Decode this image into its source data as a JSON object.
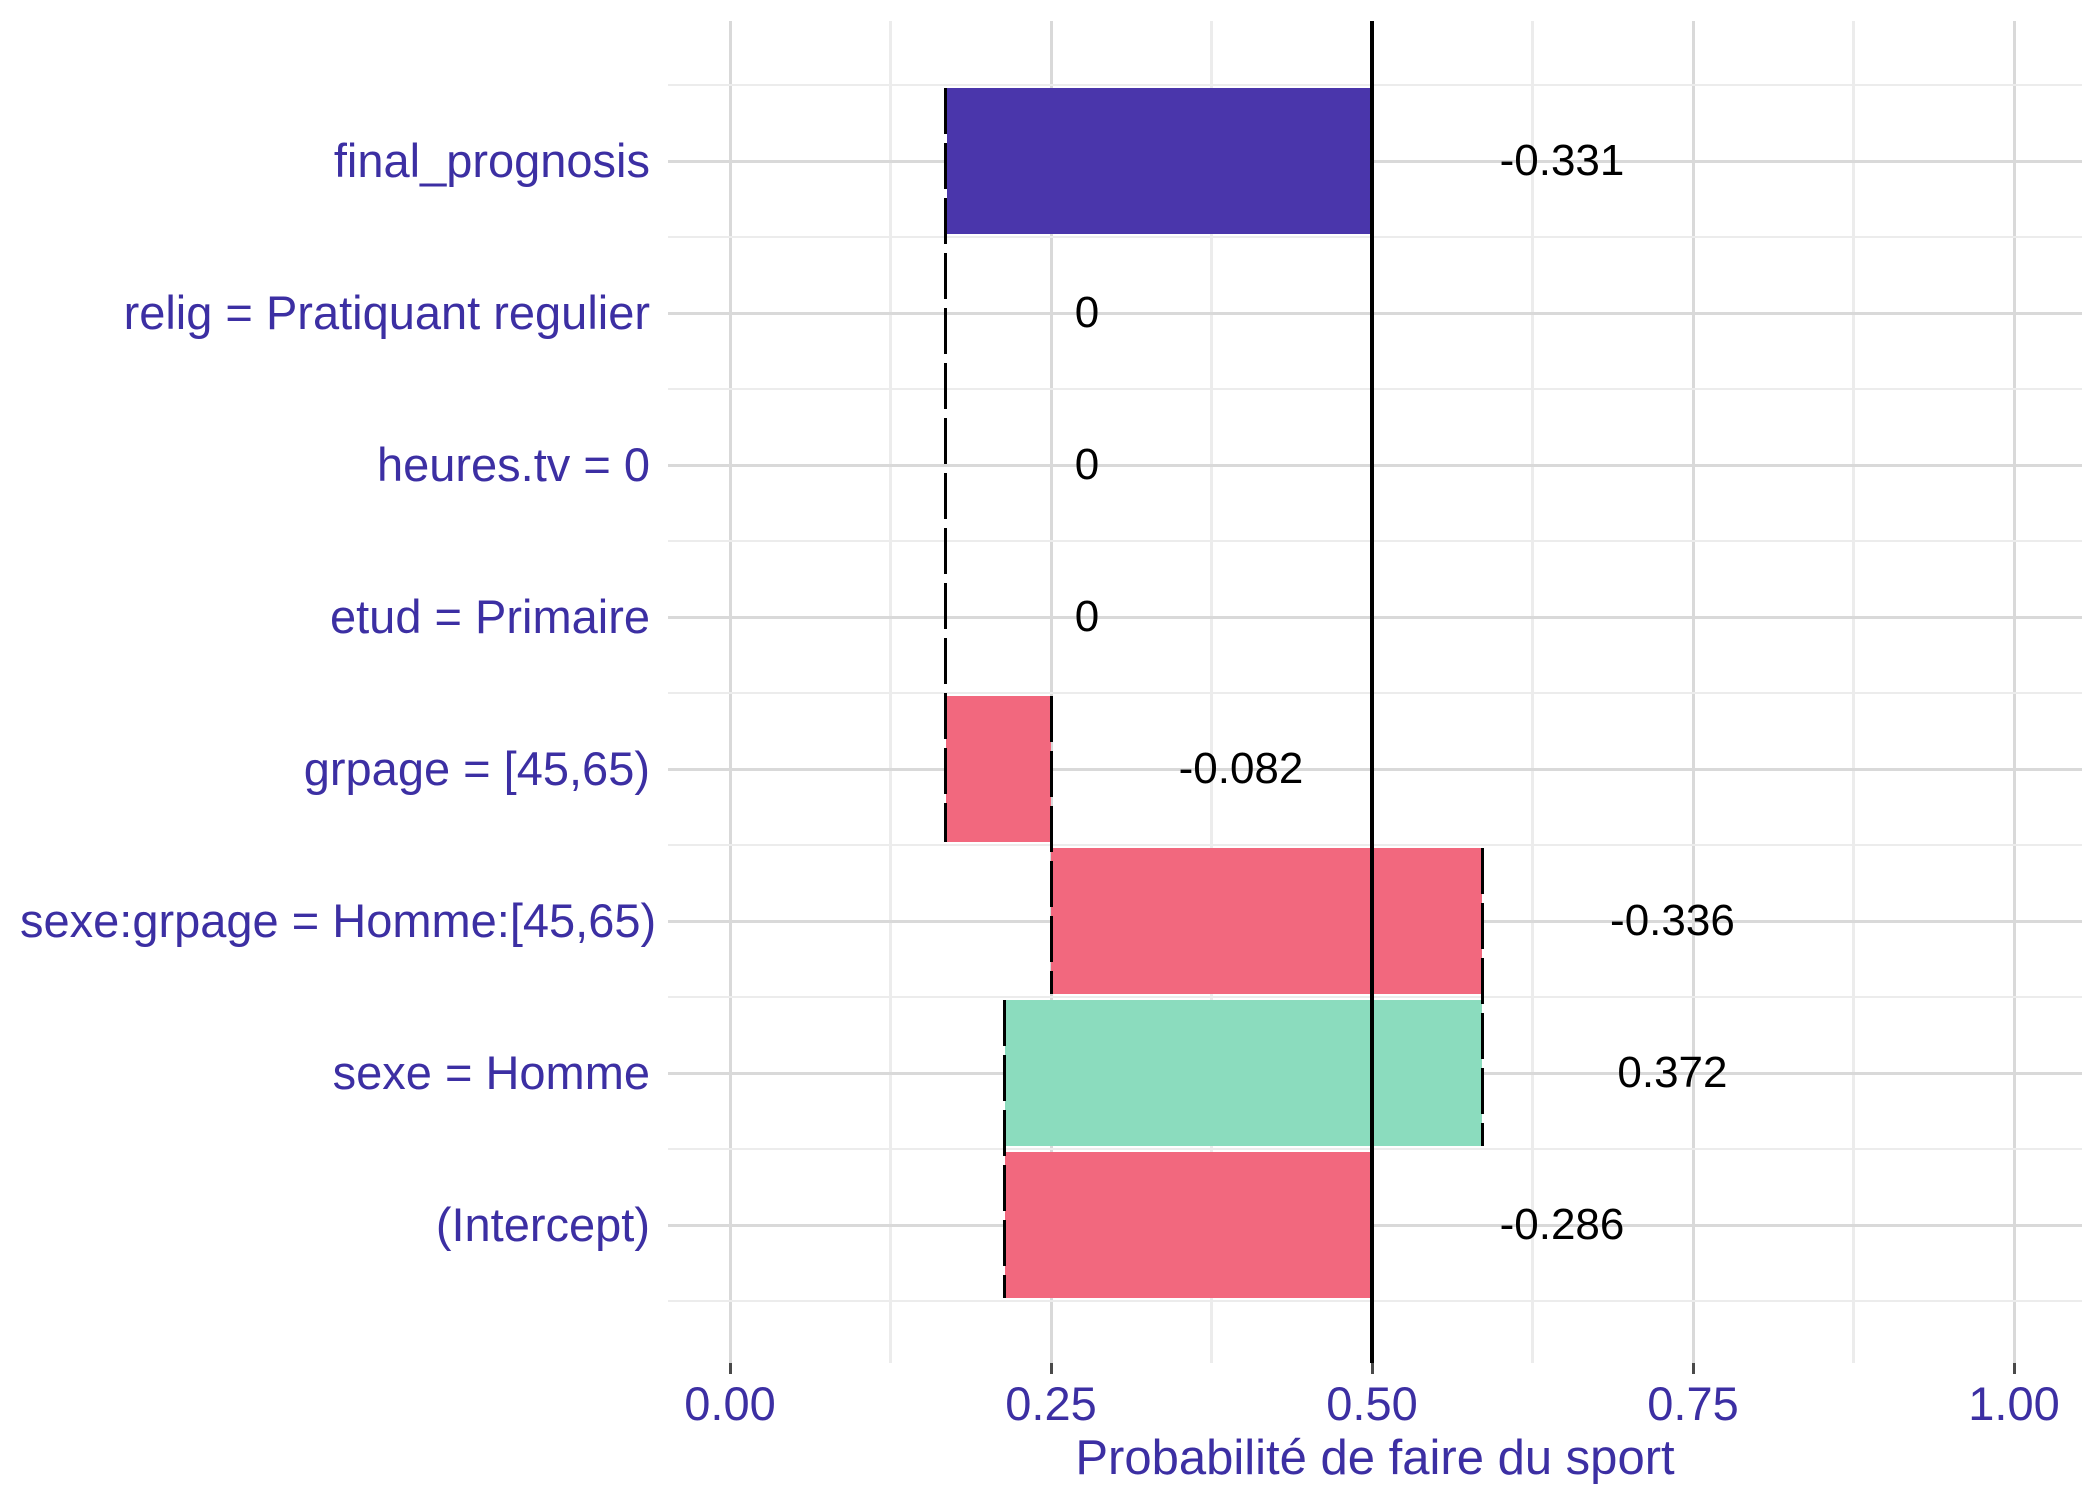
{
  "chart_data": {
    "type": "bar",
    "subtype": "horizontal-waterfall-breakdown",
    "title": "",
    "xlabel": "Probabilité de faire du sport",
    "ylabel": "",
    "xlim": [
      -0.05,
      1.05
    ],
    "baseline_value": 0.5,
    "grid": "on",
    "legend": "none",
    "x_ticks": [
      {
        "label": "0.00",
        "value": 0.0
      },
      {
        "label": "0.25",
        "value": 0.25
      },
      {
        "label": "0.50",
        "value": 0.5
      },
      {
        "label": "0.75",
        "value": 0.75
      },
      {
        "label": "1.00",
        "value": 1.0
      }
    ],
    "x_minor_ticks": [
      0.125,
      0.375,
      0.625,
      0.875
    ],
    "rows": [
      {
        "label": "final_prognosis",
        "contribution": -0.331,
        "value_label": "-0.331",
        "bar_start": 0.169,
        "bar_end": 0.5,
        "kind": "total"
      },
      {
        "label": "relig = Pratiquant regulier",
        "contribution": 0,
        "value_label": "0",
        "bar_start": null,
        "bar_end": null,
        "kind": "zero"
      },
      {
        "label": "heures.tv = 0",
        "contribution": 0,
        "value_label": "0",
        "bar_start": null,
        "bar_end": null,
        "kind": "zero"
      },
      {
        "label": "etud = Primaire",
        "contribution": 0,
        "value_label": "0",
        "bar_start": null,
        "bar_end": null,
        "kind": "zero"
      },
      {
        "label": "grpage = [45,65)",
        "contribution": -0.082,
        "value_label": "-0.082",
        "bar_start": 0.168,
        "bar_end": 0.25,
        "kind": "negative"
      },
      {
        "label": "sexe:grpage = Homme:[45,65)",
        "contribution": -0.336,
        "value_label": "-0.336",
        "bar_start": 0.25,
        "bar_end": 0.586,
        "kind": "negative"
      },
      {
        "label": "sexe = Homme",
        "contribution": 0.372,
        "value_label": "0.372",
        "bar_start": 0.214,
        "bar_end": 0.586,
        "kind": "positive"
      },
      {
        "label": "(Intercept)",
        "contribution": -0.286,
        "value_label": "-0.286",
        "bar_start": 0.214,
        "bar_end": 0.5,
        "kind": "negative"
      }
    ],
    "connectors": [
      {
        "value": 0.168,
        "from_row": 0,
        "to_row": 4
      },
      {
        "value": 0.25,
        "from_row": 4,
        "to_row": 5
      },
      {
        "value": 0.586,
        "from_row": 5,
        "to_row": 6
      },
      {
        "value": 0.214,
        "from_row": 6,
        "to_row": 7
      }
    ],
    "colors": {
      "total": "#4A36AB",
      "positive": "#8BDCBE",
      "negative": "#F2687E",
      "axis_text": "#3C2FA3",
      "value_text": "#000000",
      "grid_major": "#D9D9D9",
      "grid_minor": "#ECECEC",
      "baseline": "#000000"
    }
  }
}
